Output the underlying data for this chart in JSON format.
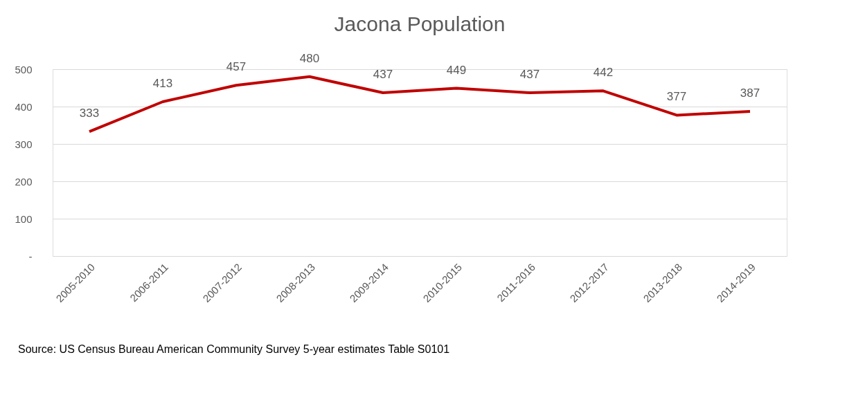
{
  "chart_data": {
    "type": "line",
    "title": "Jacona Population",
    "categories": [
      "2005-2010",
      "2006-2011",
      "2007-2012",
      "2008-2013",
      "2009-2014",
      "2010-2015",
      "2011-2016",
      "2012-2017",
      "2013-2018",
      "2014-2019"
    ],
    "series": [
      {
        "color": "#c00000",
        "values": [
          333,
          413,
          457,
          480,
          437,
          449,
          437,
          442,
          377,
          387
        ]
      }
    ],
    "ylim": [
      0,
      500
    ],
    "yticks": [
      {
        "value": 0,
        "label": "-"
      },
      100,
      200,
      300,
      400,
      500
    ],
    "grid": "y",
    "data_labels": true,
    "marker": "none",
    "line_style": "solid",
    "annotations": [
      "Source: US Census Bureau American Community Survey 5-year estimates Table S0101"
    ]
  }
}
